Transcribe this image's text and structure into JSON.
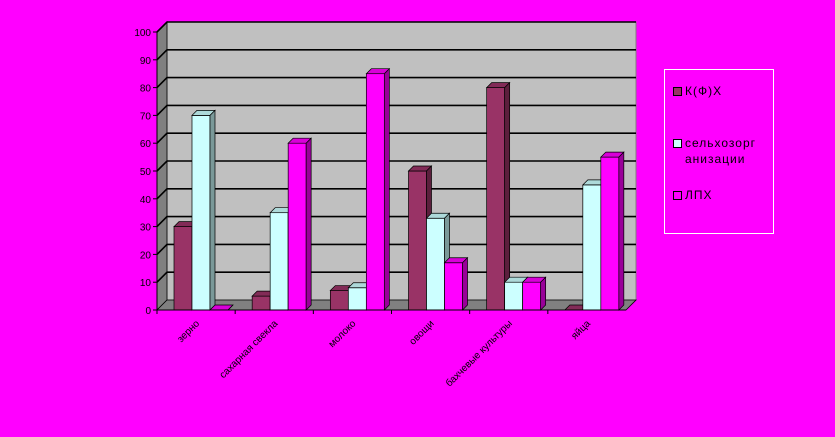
{
  "chart_data": {
    "type": "bar",
    "categories": [
      "зерно",
      "сахарная свекла",
      "молоко",
      "овощи",
      "бахчевые культуры",
      "яйца"
    ],
    "series": [
      {
        "name": "К(Ф)Х",
        "color": "#993366",
        "values": [
          30,
          5,
          7,
          50,
          80,
          0
        ]
      },
      {
        "name": "сельхозорганизации",
        "color": "#CCFFFF",
        "values": [
          70,
          35,
          8,
          33,
          10,
          45
        ]
      },
      {
        "name": "ЛПХ",
        "color": "#FF00FF",
        "values": [
          0,
          60,
          85,
          17,
          10,
          55
        ]
      }
    ],
    "legend_labels": [
      "К(Ф)Х",
      "сельхозорг",
      "анизации",
      "ЛПХ"
    ],
    "ylim": [
      0,
      100
    ],
    "yticks": [
      "0",
      "10",
      "20",
      "30",
      "40",
      "50",
      "60",
      "70",
      "80",
      "90",
      "100"
    ],
    "grid": true,
    "legend": "right"
  }
}
